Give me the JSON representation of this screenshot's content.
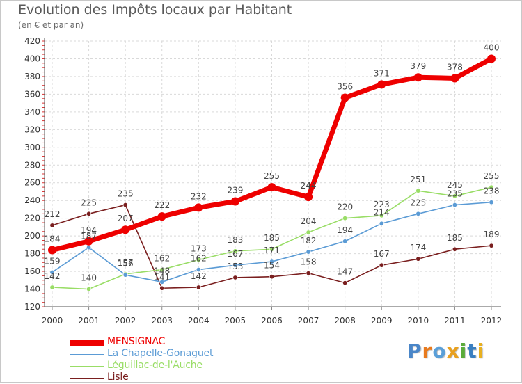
{
  "header": {
    "title": "Evolution des Impôts locaux par Habitant",
    "subtitle": "(en € et par an)"
  },
  "chart_data": {
    "type": "line",
    "title": "Evolution des Impôts locaux par Habitant",
    "subtitle": "(en € et par an)",
    "xlabel": "",
    "ylabel": "",
    "x": [
      "2000",
      "2001",
      "2002",
      "2003",
      "2004",
      "2005",
      "2006",
      "2007",
      "2008",
      "2009",
      "2010",
      "2011",
      "2012"
    ],
    "ylim": [
      120,
      420
    ],
    "yticks": [
      120,
      140,
      160,
      180,
      200,
      220,
      240,
      260,
      280,
      300,
      320,
      340,
      360,
      380,
      400,
      420
    ],
    "grid": true,
    "legend_position": "bottom-left",
    "series": [
      {
        "name": "MENSIGNAC",
        "color": "#ee0000",
        "values": [
          184,
          194,
          207,
          222,
          232,
          239,
          255,
          244,
          356,
          371,
          379,
          378,
          400
        ]
      },
      {
        "name": "La Chapelle-Gonaguet",
        "color": "#5b9bd5",
        "values": [
          159,
          187,
          156,
          148,
          162,
          167,
          171,
          182,
          194,
          214,
          225,
          235,
          238
        ]
      },
      {
        "name": "Léguillac-de-l'Auche",
        "color": "#99dd66",
        "values": [
          142,
          140,
          157,
          162,
          173,
          183,
          185,
          204,
          220,
          223,
          251,
          245,
          255
        ]
      },
      {
        "name": "Lisle",
        "color": "#7a1f1f",
        "values": [
          212,
          225,
          235,
          141,
          142,
          153,
          154,
          158,
          147,
          167,
          174,
          185,
          189
        ]
      }
    ]
  },
  "logo": {
    "letters": [
      {
        "char": "P",
        "color": "#4a86c8"
      },
      {
        "char": "r",
        "color": "#e87a1e"
      },
      {
        "char": "o",
        "color": "#5a9fd8"
      },
      {
        "char": "x",
        "color": "#e8a01e"
      },
      {
        "char": "i",
        "color": "#5aab3a"
      },
      {
        "char": "t",
        "color": "#3a7fc0"
      },
      {
        "char": "i",
        "color": "#e8b020"
      }
    ]
  }
}
